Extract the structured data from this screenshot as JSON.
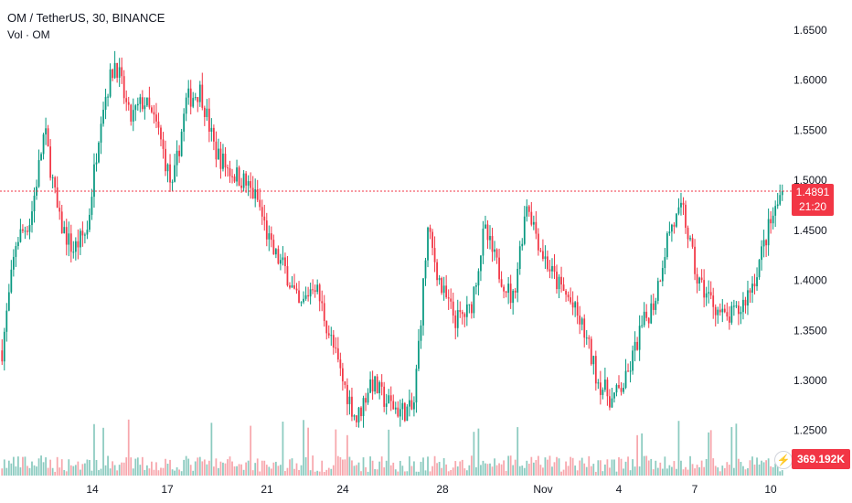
{
  "legend": {
    "symbol": "OM / TetherUS, 30, BINANCE",
    "volume_label": "Vol · OM"
  },
  "last_price": {
    "value": "1.4891",
    "countdown": "21:20"
  },
  "last_volume": "369.192K",
  "colors": {
    "up": "#089981",
    "down": "#f23645",
    "up_volume": "#8ccbc0",
    "down_volume": "#f7a7ad",
    "price_line": "#f23645",
    "grid": "#f0f3fa",
    "axis_text": "#131722"
  },
  "chart_data": {
    "type": "candlestick",
    "title": "",
    "xlabel": "",
    "ylabel": "",
    "ylim": [
      1.205,
      1.68
    ],
    "y_ticks": [
      "1.2500",
      "1.3000",
      "1.3500",
      "1.4000",
      "1.4500",
      "1.5000",
      "1.5500",
      "1.6000",
      "1.6500"
    ],
    "x_ticks": [
      "14",
      "17",
      "21",
      "24",
      "28",
      "Nov",
      "4",
      "7",
      "10"
    ],
    "grid": false,
    "approx_close_path": [
      {
        "date": "Oct 11",
        "price": 1.33
      },
      {
        "date": "Oct 11",
        "price": 1.44
      },
      {
        "date": "Oct 12",
        "price": 1.46
      },
      {
        "date": "Oct 12",
        "price": 1.55
      },
      {
        "date": "Oct 13",
        "price": 1.46
      },
      {
        "date": "Oct 13",
        "price": 1.43
      },
      {
        "date": "Oct 14",
        "price": 1.45
      },
      {
        "date": "Oct 14",
        "price": 1.57
      },
      {
        "date": "Oct 15",
        "price": 1.62
      },
      {
        "date": "Oct 15",
        "price": 1.56
      },
      {
        "date": "Oct 16",
        "price": 1.58
      },
      {
        "date": "Oct 17",
        "price": 1.55
      },
      {
        "date": "Oct 17",
        "price": 1.49
      },
      {
        "date": "Oct 18",
        "price": 1.58
      },
      {
        "date": "Oct 19",
        "price": 1.59
      },
      {
        "date": "Oct 19",
        "price": 1.53
      },
      {
        "date": "Oct 20",
        "price": 1.51
      },
      {
        "date": "Oct 21",
        "price": 1.5
      },
      {
        "date": "Oct 21",
        "price": 1.48
      },
      {
        "date": "Oct 22",
        "price": 1.43
      },
      {
        "date": "Oct 23",
        "price": 1.41
      },
      {
        "date": "Oct 23",
        "price": 1.37
      },
      {
        "date": "Oct 24",
        "price": 1.4
      },
      {
        "date": "Oct 24",
        "price": 1.35
      },
      {
        "date": "Oct 25",
        "price": 1.3
      },
      {
        "date": "Oct 25",
        "price": 1.26
      },
      {
        "date": "Oct 26",
        "price": 1.3
      },
      {
        "date": "Oct 26",
        "price": 1.28
      },
      {
        "date": "Oct 27",
        "price": 1.27
      },
      {
        "date": "Oct 28",
        "price": 1.27
      },
      {
        "date": "Oct 28",
        "price": 1.45
      },
      {
        "date": "Oct 28",
        "price": 1.39
      },
      {
        "date": "Oct 29",
        "price": 1.36
      },
      {
        "date": "Oct 30",
        "price": 1.37
      },
      {
        "date": "Oct 30",
        "price": 1.45
      },
      {
        "date": "Oct 31",
        "price": 1.41
      },
      {
        "date": "Nov 1",
        "price": 1.38
      },
      {
        "date": "Nov 1",
        "price": 1.48
      },
      {
        "date": "Nov 2",
        "price": 1.43
      },
      {
        "date": "Nov 2",
        "price": 1.4
      },
      {
        "date": "Nov 3",
        "price": 1.38
      },
      {
        "date": "Nov 4",
        "price": 1.35
      },
      {
        "date": "Nov 4",
        "price": 1.3
      },
      {
        "date": "Nov 5",
        "price": 1.28
      },
      {
        "date": "Nov 5",
        "price": 1.3
      },
      {
        "date": "Nov 6",
        "price": 1.35
      },
      {
        "date": "Nov 6",
        "price": 1.38
      },
      {
        "date": "Nov 7",
        "price": 1.45
      },
      {
        "date": "Nov 7",
        "price": 1.47
      },
      {
        "date": "Nov 8",
        "price": 1.4
      },
      {
        "date": "Nov 8",
        "price": 1.38
      },
      {
        "date": "Nov 9",
        "price": 1.36
      },
      {
        "date": "Nov 9",
        "price": 1.37
      },
      {
        "date": "Nov 10",
        "price": 1.4
      },
      {
        "date": "Nov 10",
        "price": 1.45
      },
      {
        "date": "Nov 10",
        "price": 1.4891
      }
    ]
  }
}
